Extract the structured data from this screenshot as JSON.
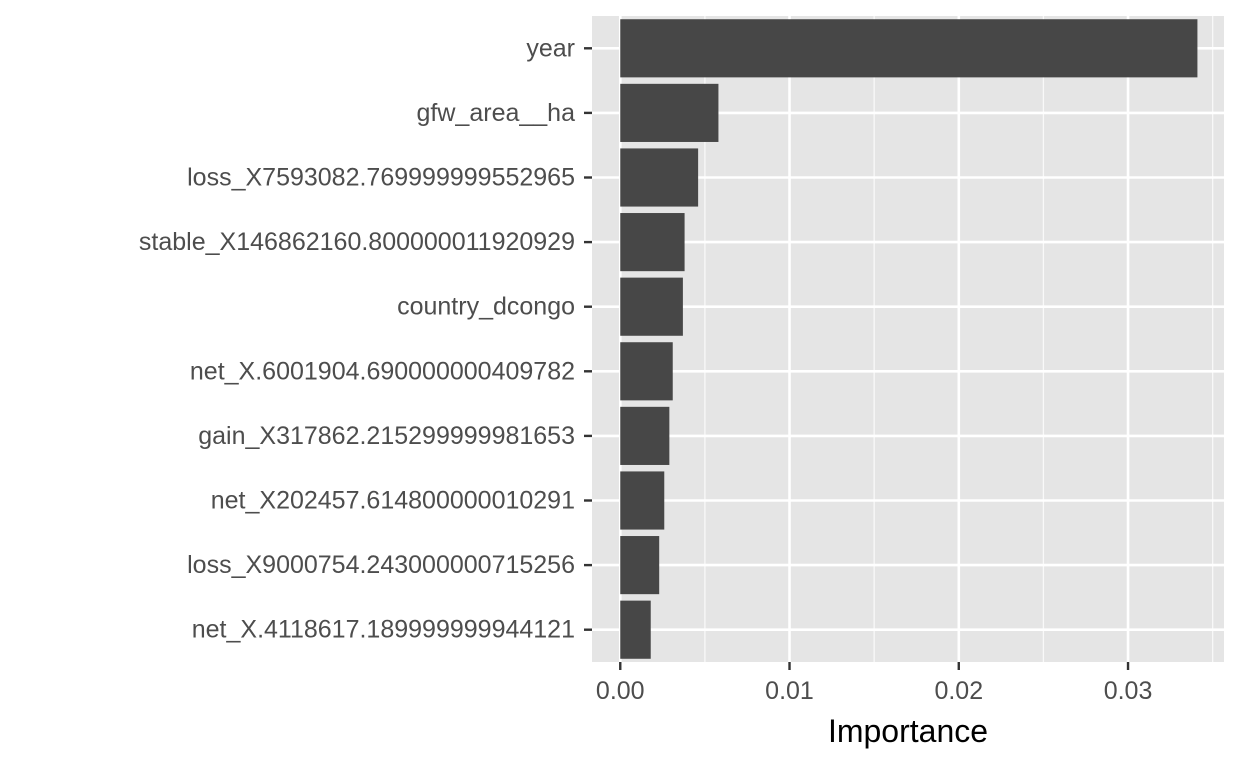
{
  "chart_data": {
    "type": "bar",
    "orientation": "horizontal",
    "title": "",
    "xlabel": "Importance",
    "ylabel": "",
    "categories": [
      "year",
      "gfw_area__ha",
      "loss_X7593082.769999999552965",
      "stable_X146862160.800000011920929",
      "country_dcongo",
      "net_X.6001904.690000000409782",
      "gain_X317862.215299999981653",
      "net_X202457.614800000010291",
      "loss_X9000754.243000000715256",
      "net_X.4118617.189999999944121"
    ],
    "values": [
      0.0341,
      0.0058,
      0.0046,
      0.0038,
      0.0037,
      0.0031,
      0.0029,
      0.0026,
      0.0023,
      0.0018
    ],
    "xlim": [
      -0.00167,
      0.03567
    ],
    "x_ticks": [
      0.0,
      0.01,
      0.02,
      0.03
    ],
    "x_tick_labels": [
      "0.00",
      "0.01",
      "0.02",
      "0.03"
    ],
    "grid": true,
    "legend": "none",
    "colors": {
      "bar": "#474747",
      "panel_background": "#e5e5e5",
      "grid_major": "#ffffff",
      "grid_minor": "#f2f2f2",
      "tick_text": "#4d4d4d",
      "title_text": "#000000"
    }
  }
}
